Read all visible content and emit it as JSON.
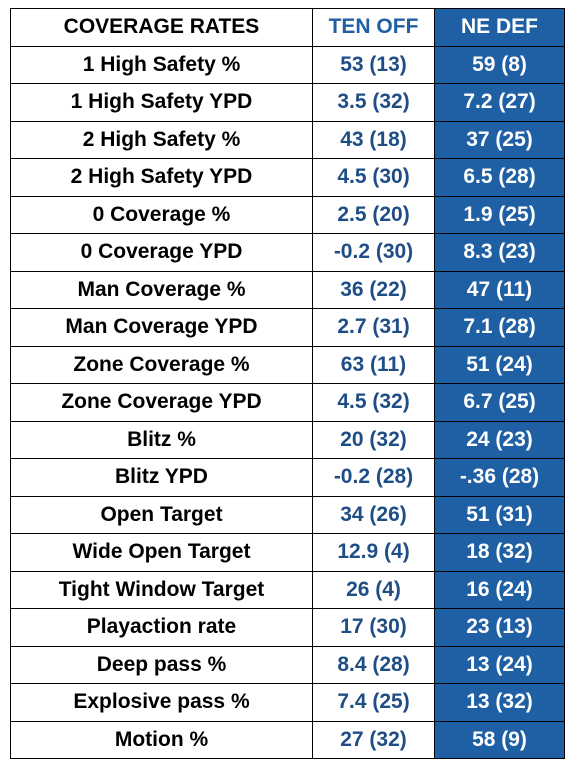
{
  "header": {
    "label": "COVERAGE RATES",
    "off": "TEN OFF",
    "def": "NE DEF"
  },
  "rows": [
    {
      "label": "1 High Safety %",
      "off": "53 (13)",
      "def": "59 (8)"
    },
    {
      "label": "1 High Safety YPD",
      "off": "3.5 (32)",
      "def": "7.2 (27)"
    },
    {
      "label": "2 High Safety %",
      "off": "43 (18)",
      "def": "37 (25)"
    },
    {
      "label": "2 High Safety YPD",
      "off": "4.5 (30)",
      "def": "6.5 (28)"
    },
    {
      "label": "0 Coverage %",
      "off": "2.5 (20)",
      "def": "1.9 (25)"
    },
    {
      "label": "0 Coverage YPD",
      "off": "-0.2 (30)",
      "def": "8.3 (23)"
    },
    {
      "label": "Man Coverage %",
      "off": "36 (22)",
      "def": "47 (11)"
    },
    {
      "label": "Man Coverage YPD",
      "off": "2.7 (31)",
      "def": "7.1 (28)"
    },
    {
      "label": "Zone Coverage %",
      "off": "63 (11)",
      "def": "51 (24)"
    },
    {
      "label": "Zone Coverage YPD",
      "off": "4.5 (32)",
      "def": "6.7 (25)"
    },
    {
      "label": "Blitz %",
      "off": "20 (32)",
      "def": "24 (23)"
    },
    {
      "label": "Blitz YPD",
      "off": "-0.2 (28)",
      "def": "-.36 (28)"
    },
    {
      "label": "Open Target",
      "off": "34 (26)",
      "def": "51 (31)"
    },
    {
      "label": "Wide Open Target",
      "off": "12.9 (4)",
      "def": "18 (32)"
    },
    {
      "label": "Tight Window Target",
      "off": "26 (4)",
      "def": "16 (24)"
    },
    {
      "label": "Playaction rate",
      "off": "17 (30)",
      "def": "23 (13)"
    },
    {
      "label": "Deep pass %",
      "off": "8.4 (28)",
      "def": "13 (24)"
    },
    {
      "label": "Explosive pass %",
      "off": "7.4 (25)",
      "def": "13 (32)"
    },
    {
      "label": "Motion %",
      "off": "27 (32)",
      "def": "58 (9)"
    }
  ],
  "colors": {
    "def_fill": "#1f5fa3",
    "off_text": "#1f4e86",
    "header_off_text": "#1f5fa3"
  }
}
